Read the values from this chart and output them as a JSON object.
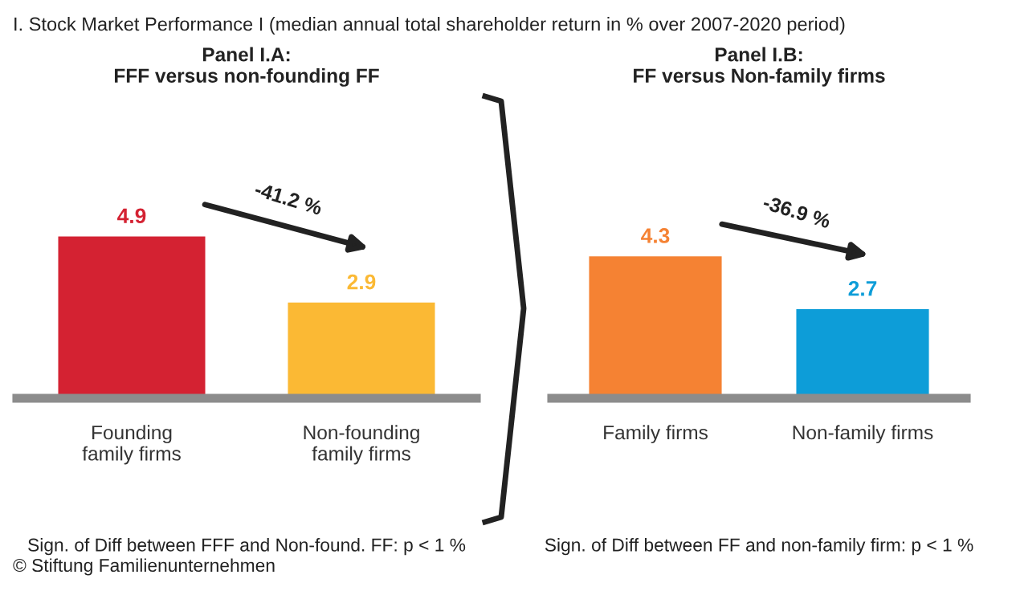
{
  "chart_data": [
    {
      "type": "bar",
      "title": "Panel I.A:\nFFF versus non-founding FF",
      "categories": [
        "Founding\nfamily firms",
        "Non-founding\nfamily firms"
      ],
      "values": [
        4.9,
        2.9
      ],
      "colors": [
        "#d42232",
        "#fbb934"
      ],
      "data_labels": true,
      "annotations": [
        "-41.2 %",
        "Sign. of Diff between FFF and Non-found. FF: p < 1 %",
        "I. Stock Market Performance I (median annual total shareholder return in % over 2007-2020 period)",
        "© Stiftung Familienunternehmen"
      ]
    },
    {
      "type": "bar",
      "title": "Panel I.B:\nFF versus Non-family firms",
      "categories": [
        "Family firms",
        "Non-family firms"
      ],
      "values": [
        4.3,
        2.7
      ],
      "colors": [
        "#f58233",
        "#0d9dd8"
      ],
      "data_labels": true,
      "annotations": [
        "-36.9 %",
        "Sign. of Diff between FF and non-family firm: p < 1 %"
      ]
    }
  ]
}
